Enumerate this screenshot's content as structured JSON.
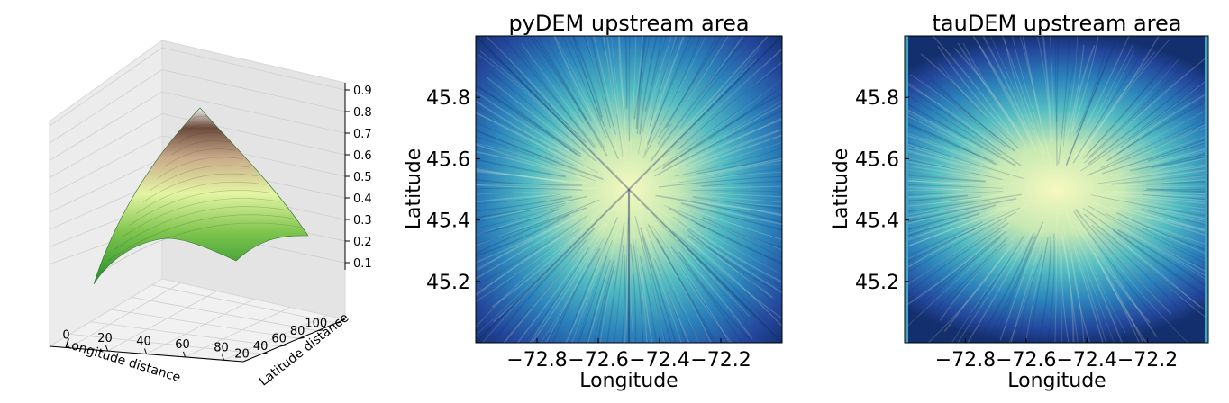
{
  "chart_data": [
    {
      "type": "surface",
      "title": "",
      "xlabel": "Longitude distance",
      "ylabel": "Latitude distance",
      "zlabel": "",
      "x_ticks": [
        "0",
        "20",
        "40",
        "60",
        "80"
      ],
      "y_ticks": [
        "20",
        "40",
        "60",
        "80",
        "100"
      ],
      "z_ticks": [
        "0.1",
        "0.2",
        "0.3",
        "0.4",
        "0.5",
        "0.6",
        "0.7",
        "0.8",
        "0.9"
      ],
      "xlim": [
        -10,
        90
      ],
      "ylim": [
        0,
        110
      ],
      "zlim": [
        0.1,
        0.9
      ],
      "x_range": [
        0,
        100
      ],
      "y_range": [
        0,
        100
      ],
      "peak": {
        "x": 50,
        "y": 50,
        "z": 0.88
      },
      "min_z": 0.1,
      "colormap": [
        "#1d8a2a",
        "#7cc34c",
        "#e5f5a4",
        "#c9a98a",
        "#6b4a3c",
        "#ffffff"
      ],
      "grid": true,
      "pane_color": "#ebebeb"
    },
    {
      "type": "heatmap",
      "title": "pyDEM upstream area",
      "xlabel": "Longitude",
      "ylabel": "Latitude",
      "x_ticks": [
        "−72.8",
        "−72.6",
        "−72.4",
        "−72.2"
      ],
      "x_tick_values": [
        -72.8,
        -72.6,
        -72.4,
        -72.2
      ],
      "y_ticks": [
        "45.8",
        "45.6",
        "45.4",
        "45.2"
      ],
      "y_tick_values": [
        45.8,
        45.6,
        45.4,
        45.2
      ],
      "xlim": [
        -73.0,
        -72.0
      ],
      "ylim": [
        45.0,
        46.0
      ],
      "center": {
        "lon": -72.5,
        "lat": 45.5
      },
      "pattern": "radial",
      "colormap": [
        "#f6f9bf",
        "#c6e8b3",
        "#52bcc2",
        "#2b82bb",
        "#24479c",
        "#132f6e"
      ]
    },
    {
      "type": "heatmap",
      "title": "tauDEM upstream area",
      "xlabel": "Longitude",
      "ylabel": "Latitude",
      "x_ticks": [
        "−72.8",
        "−72.6",
        "−72.4",
        "−72.2"
      ],
      "x_tick_values": [
        -72.8,
        -72.6,
        -72.4,
        -72.2
      ],
      "y_ticks": [
        "45.8",
        "45.6",
        "45.4",
        "45.2"
      ],
      "y_tick_values": [
        45.8,
        45.6,
        45.4,
        45.2
      ],
      "xlim": [
        -73.0,
        -72.0
      ],
      "ylim": [
        45.0,
        46.0
      ],
      "center": {
        "lon": -72.5,
        "lat": 45.5
      },
      "pattern": "horizontal-ellipse",
      "colormap": [
        "#f6f9bf",
        "#c6e8b3",
        "#52bcc2",
        "#2b82bb",
        "#24479c",
        "#132f6e"
      ]
    }
  ]
}
